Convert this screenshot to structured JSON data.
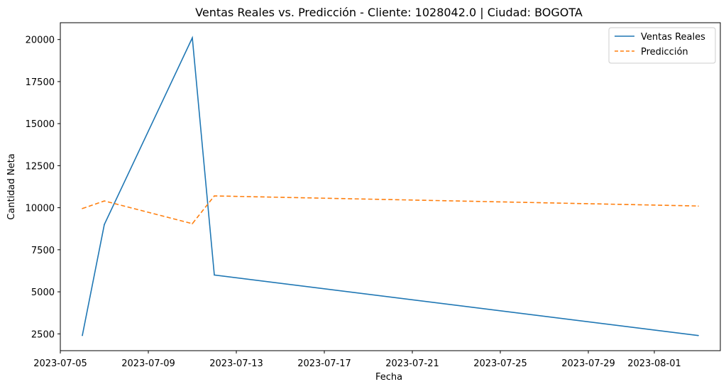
{
  "chart_data": {
    "type": "line",
    "title": "Ventas Reales vs. Predicción - Cliente: 1028042.0 | Ciudad: BOGOTA",
    "xlabel": "Fecha",
    "ylabel": "Cantidad Neta",
    "x_ticks": [
      "2023-07-05",
      "2023-07-09",
      "2023-07-13",
      "2023-07-17",
      "2023-07-21",
      "2023-07-25",
      "2023-07-29",
      "2023-08-01"
    ],
    "y_ticks": [
      2500,
      5000,
      7500,
      10000,
      12500,
      15000,
      17500,
      20000
    ],
    "xlim": [
      "2023-07-05",
      "2023-08-04"
    ],
    "ylim": [
      1500,
      21000
    ],
    "grid": false,
    "legend_position": "top-right",
    "series": [
      {
        "name": "Ventas Reales",
        "color": "#1f77b4",
        "style": "solid",
        "x": [
          "2023-07-06",
          "2023-07-07",
          "2023-07-11",
          "2023-07-12",
          "2023-08-03"
        ],
        "y": [
          2400,
          9000,
          20100,
          6000,
          2400
        ]
      },
      {
        "name": "Predicción",
        "color": "#ff7f0e",
        "style": "dashed",
        "x": [
          "2023-07-06",
          "2023-07-07",
          "2023-07-11",
          "2023-07-12",
          "2023-08-03"
        ],
        "y": [
          9950,
          10400,
          9050,
          10700,
          10100
        ]
      }
    ]
  }
}
